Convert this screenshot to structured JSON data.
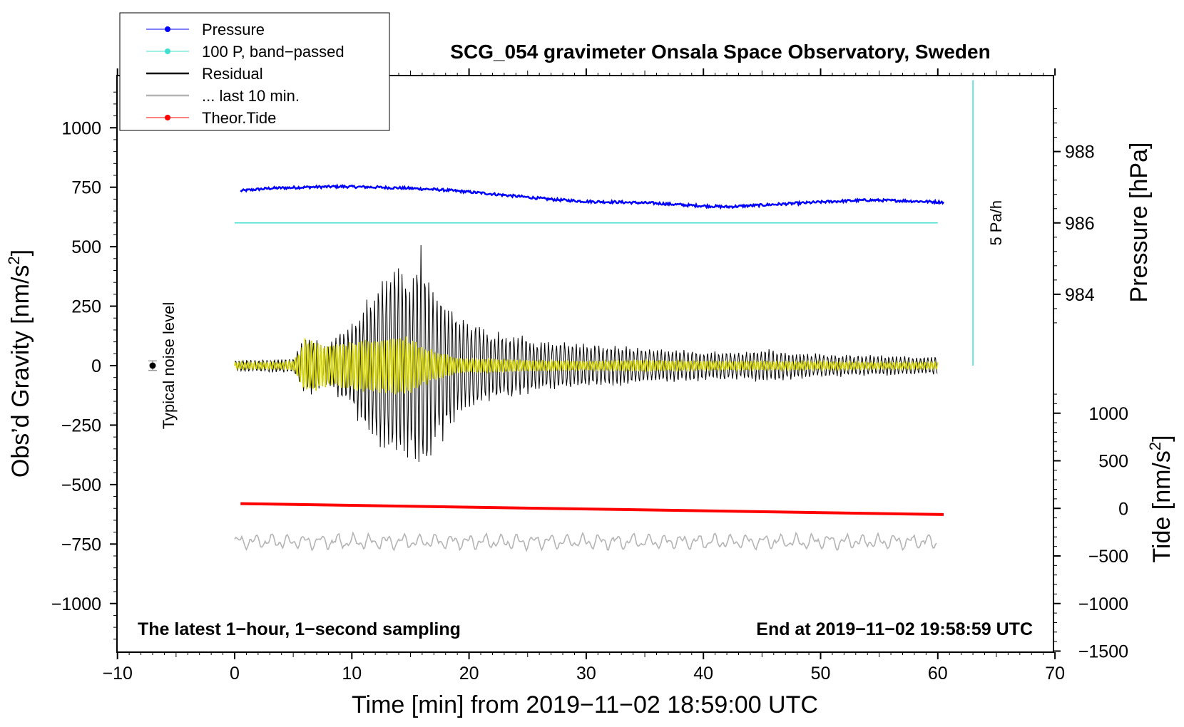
{
  "chart_data": {
    "type": "line",
    "title": "SCG_054 gravimeter Onsala Space Observatory, Sweden",
    "subtitle_left": "The latest 1−hour, 1−second sampling",
    "subtitle_right": "End at 2019−11−02 19:58:59 UTC",
    "xlabel": "Time [min] from 2019−11−02 18:59:00 UTC",
    "ylabel_left_main": "Obs’d Gravity [nm/s",
    "ylabel_left_sup": "2",
    "ylabel_left_end": "]",
    "ylabel_pressure": "Pressure [hPa]",
    "ylabel_tide_main": "Tide [nm/s",
    "ylabel_tide_sup": "2",
    "ylabel_tide_end": "]",
    "xlim": [
      -10,
      70
    ],
    "ylim_left": [
      -1200,
      1200
    ],
    "x_ticks": [
      {
        "value": -10,
        "label": "−10"
      },
      {
        "value": 0,
        "label": "0"
      },
      {
        "value": 10,
        "label": "10"
      },
      {
        "value": 20,
        "label": "20"
      },
      {
        "value": 30,
        "label": "30"
      },
      {
        "value": 40,
        "label": "40"
      },
      {
        "value": 50,
        "label": "50"
      },
      {
        "value": 60,
        "label": "60"
      },
      {
        "value": 70,
        "label": "70"
      }
    ],
    "y_ticks_left": [
      {
        "value": 1000,
        "label": "1000"
      },
      {
        "value": 750,
        "label": "750"
      },
      {
        "value": 500,
        "label": "500"
      },
      {
        "value": 250,
        "label": "250"
      },
      {
        "value": 0,
        "label": "0"
      },
      {
        "value": -250,
        "label": "−250"
      },
      {
        "value": -500,
        "label": "−500"
      },
      {
        "value": -750,
        "label": "−750"
      },
      {
        "value": -1000,
        "label": "−1000"
      }
    ],
    "pressure_axis": {
      "ticks": [
        {
          "value": 988,
          "label": "988"
        },
        {
          "value": 986,
          "label": "986"
        },
        {
          "value": 984,
          "label": "984"
        }
      ],
      "maps_to_gravity": [
        {
          "hpa": 988,
          "gravity": 900
        },
        {
          "hpa": 984,
          "gravity": 300
        }
      ]
    },
    "tide_axis": {
      "ticks": [
        {
          "value": 1000,
          "label": "1000"
        },
        {
          "value": 500,
          "label": "500"
        },
        {
          "value": 0,
          "label": "0"
        },
        {
          "value": -500,
          "label": "−500"
        },
        {
          "value": -1000,
          "label": "−1000"
        },
        {
          "value": -1500,
          "label": "−1500"
        }
      ],
      "maps_to_gravity": [
        {
          "tide": 1000,
          "gravity": -200
        },
        {
          "tide": -1500,
          "gravity": -1200
        }
      ]
    },
    "legend": [
      {
        "label": "Pressure",
        "color": "#0000ff",
        "marker": true
      },
      {
        "label": "100 P, band−passed",
        "color": "#40e0d0",
        "marker": true
      },
      {
        "label": "Residual",
        "color": "#000000",
        "marker": false
      },
      {
        "label": "... last 10 min.",
        "color": "#b4b4b4",
        "marker": false
      },
      {
        "label": "Theor.Tide",
        "color": "#ff0000",
        "marker": true
      }
    ],
    "series": [
      {
        "name": "Pressure",
        "axis": "pressure_hPa",
        "color": "#0000ff",
        "x": [
          0.5,
          3,
          6,
          9,
          12,
          15,
          18,
          21,
          24,
          27,
          30,
          33,
          36,
          39,
          42,
          45,
          48,
          51,
          54,
          57,
          60.5
        ],
        "y": [
          986.9,
          986.97,
          987.0,
          987.02,
          987.0,
          986.97,
          986.92,
          986.84,
          986.75,
          986.66,
          986.6,
          986.58,
          986.55,
          986.49,
          986.45,
          986.5,
          986.55,
          986.6,
          986.64,
          986.62,
          986.58
        ]
      },
      {
        "name": "100 P, band−passed",
        "axis": "gravity",
        "color": "#40e0d0",
        "x": [
          0,
          60
        ],
        "y": [
          600,
          600
        ]
      },
      {
        "name": "Residual",
        "axis": "gravity",
        "color": "#000000",
        "envelope_x": [
          0,
          4,
          5,
          5.5,
          6,
          7,
          8,
          10,
          11,
          12,
          13,
          14,
          15,
          16,
          17,
          18,
          19,
          20,
          22,
          25,
          26,
          30,
          32,
          35,
          40,
          43,
          45,
          50,
          55,
          58,
          60
        ],
        "envelope_amp": [
          25,
          30,
          30,
          80,
          130,
          120,
          100,
          190,
          280,
          350,
          420,
          450,
          380,
          540,
          350,
          320,
          220,
          200,
          150,
          130,
          110,
          100,
          90,
          80,
          65,
          60,
          75,
          50,
          45,
          40,
          40
        ]
      },
      {
        "name": "Yellow filtered residual",
        "axis": "gravity",
        "color": "#d4d400",
        "envelope_x": [
          0,
          4,
          5,
          5.5,
          6,
          7,
          8,
          10,
          12,
          14,
          15,
          16,
          17,
          18,
          19,
          20,
          22,
          25,
          30,
          35,
          40,
          45,
          50,
          55,
          60
        ],
        "envelope_amp": [
          15,
          15,
          20,
          60,
          120,
          110,
          90,
          110,
          120,
          130,
          120,
          90,
          65,
          50,
          35,
          30,
          30,
          25,
          20,
          25,
          20,
          20,
          18,
          15,
          15
        ]
      },
      {
        "name": "... last 10 min.",
        "axis": "gravity",
        "color": "#b4b4b4",
        "baseline": -740,
        "x_range": [
          0,
          60
        ],
        "amplitude": 40
      },
      {
        "name": "Theor.Tide",
        "axis": "tide_nm_s2",
        "color": "#ff0000",
        "x": [
          0.5,
          60.5
        ],
        "y": [
          50,
          -65
        ]
      }
    ],
    "annotations": [
      {
        "text": "Typical noise level",
        "x": -7,
        "y": 0
      },
      {
        "text": "5 Pa/h",
        "x": 63,
        "y": 600
      }
    ],
    "noise_marker": {
      "x": -7,
      "y": 0,
      "error": 20
    },
    "rate_bar": {
      "x": 63,
      "y_from": 0,
      "y_to": 1200,
      "color": "#40e0d0"
    }
  }
}
